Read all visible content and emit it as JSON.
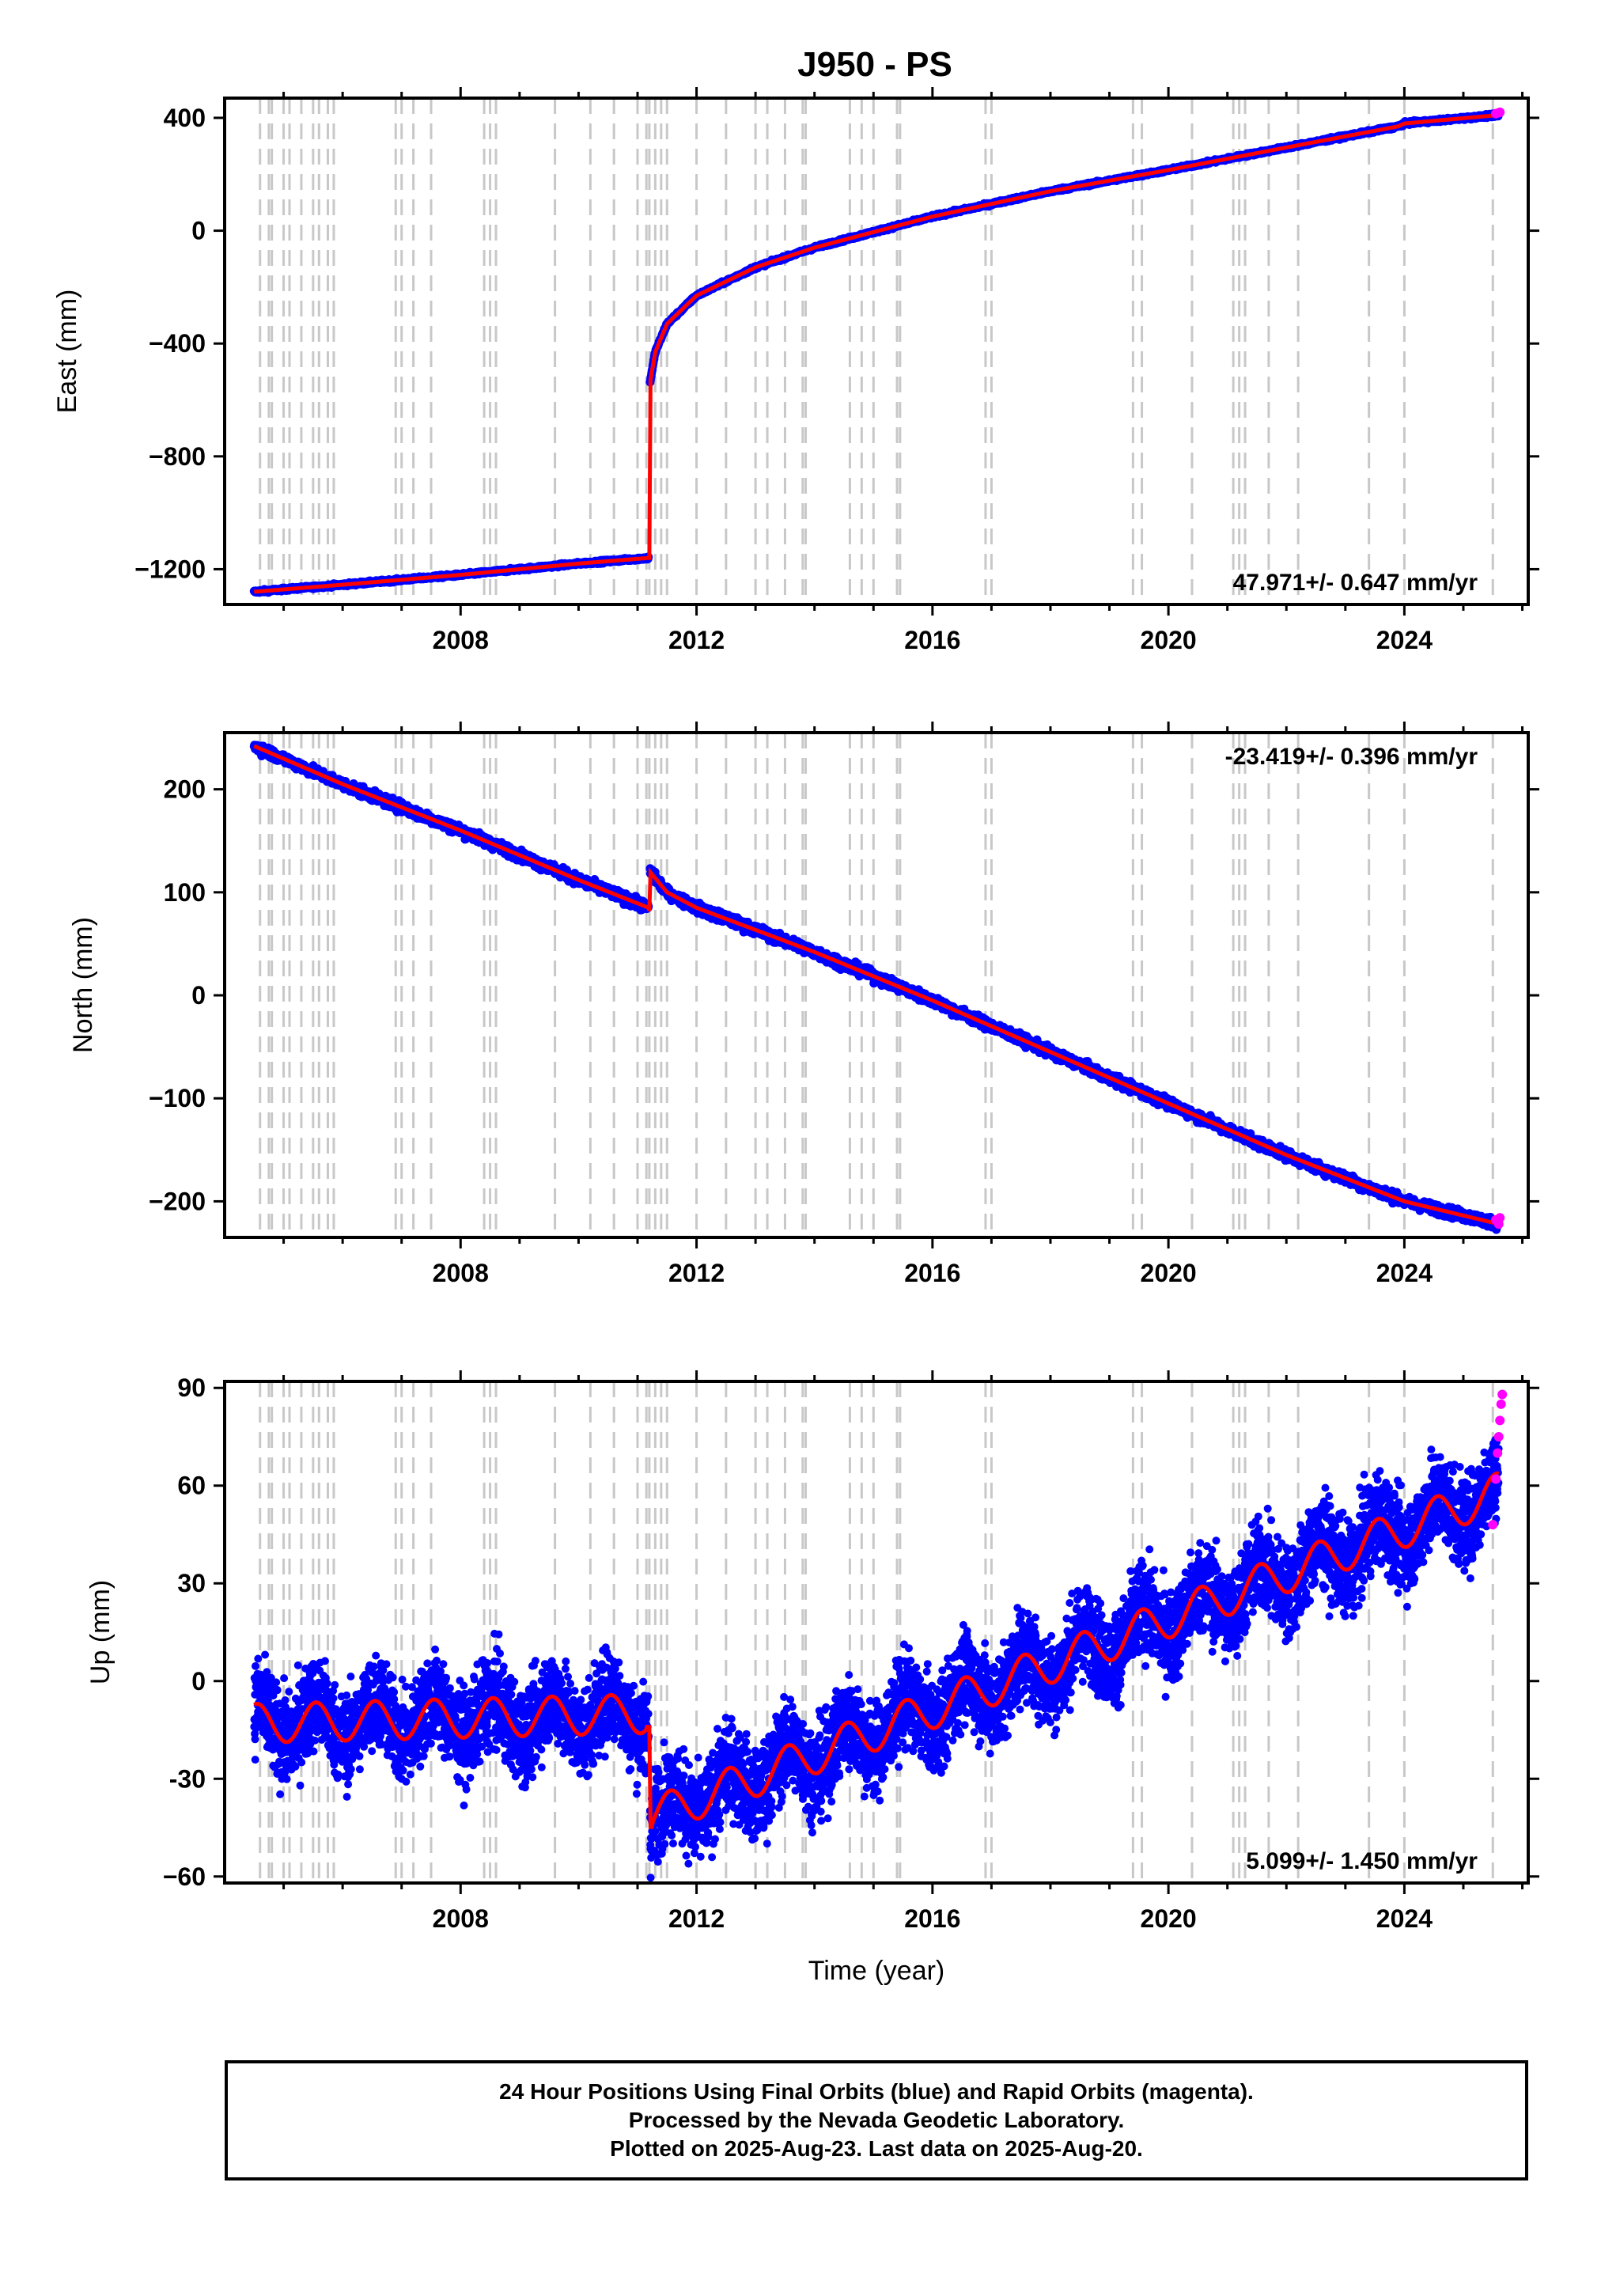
{
  "title": "J950 - PS",
  "footer": {
    "line1": "24 Hour Positions Using Final Orbits (blue) and Rapid Orbits (magenta).",
    "line2": "Processed by the Nevada Geodetic Laboratory.",
    "line3": "Plotted on 2025-Aug-23. Last data on 2025-Aug-20."
  },
  "colors": {
    "final": "#0000ff",
    "rapid": "#ff00ff",
    "model": "#ff0000",
    "events": "#c8c8c8"
  },
  "chart_data": [
    {
      "type": "scatter",
      "ylabel": "East (mm)",
      "rate": "47.971+/- 0.647 mm/yr",
      "rate_position": "bottom-right",
      "xlim": [
        2004.0,
        2026.1
      ],
      "ylim": [
        -1325,
        470
      ],
      "xticks": [
        2008,
        2012,
        2016,
        2020,
        2024
      ],
      "xtick_labels": [
        "2008",
        "2012",
        "2016",
        "2020",
        "2024"
      ],
      "yticks": [
        -1200,
        -800,
        -400,
        0,
        400
      ],
      "ytick_labels": [
        "−1200",
        "−800",
        "−400",
        "0",
        "400"
      ],
      "model": {
        "x": [
          2004.5,
          2006,
          2008,
          2010,
          2011.19,
          2011.2,
          2011.21,
          2011.3,
          2011.5,
          2012,
          2013,
          2014,
          2016,
          2018,
          2020,
          2022,
          2023.9,
          2024.0,
          2025.6
        ],
        "y": [
          -1280,
          -1255,
          -1220,
          -1180,
          -1160,
          -1160,
          -540,
          -430,
          -330,
          -230,
          -130,
          -60,
          50,
          140,
          215,
          295,
          370,
          380,
          410
        ]
      },
      "rapid": {
        "x": [
          2025.55,
          2025.6,
          2025.62
        ],
        "y": [
          415,
          418,
          420
        ]
      }
    },
    {
      "type": "scatter",
      "ylabel": "North (mm)",
      "rate": "-23.419+/- 0.396 mm/yr",
      "rate_position": "top-right",
      "xlim": [
        2004.0,
        2026.1
      ],
      "ylim": [
        -235,
        255
      ],
      "xticks": [
        2008,
        2012,
        2016,
        2020,
        2024
      ],
      "xtick_labels": [
        "2008",
        "2012",
        "2016",
        "2020",
        "2024"
      ],
      "yticks": [
        -200,
        -100,
        0,
        100,
        200
      ],
      "ytick_labels": [
        "−200",
        "−100",
        "0",
        "100",
        "200"
      ],
      "model": {
        "x": [
          2004.5,
          2006,
          2008,
          2010,
          2011.19,
          2011.2,
          2011.21,
          2011.5,
          2012,
          2014,
          2016,
          2018,
          2020,
          2022,
          2024,
          2025.6
        ],
        "y": [
          242,
          205,
          160,
          112,
          85,
          82,
          120,
          100,
          85,
          42,
          -5,
          -55,
          -105,
          -155,
          -200,
          -222
        ]
      },
      "rapid": {
        "x": [
          2025.55,
          2025.6,
          2025.62
        ],
        "y": [
          -218,
          -222,
          -216
        ]
      }
    },
    {
      "type": "scatter",
      "ylabel": "Up (mm)",
      "xlabel": "Time (year)",
      "rate": "5.099+/- 1.450 mm/yr",
      "rate_position": "bottom-right",
      "xlim": [
        2004.0,
        2026.1
      ],
      "ylim": [
        -62,
        92
      ],
      "xticks": [
        2008,
        2012,
        2016,
        2020,
        2024
      ],
      "xtick_labels": [
        "2008",
        "2012",
        "2016",
        "2020",
        "2024"
      ],
      "yticks": [
        -60,
        -30,
        0,
        30,
        60,
        90
      ],
      "ytick_labels": [
        "−60",
        "-30",
        "0",
        "30",
        "60",
        "90"
      ],
      "model": {
        "pre": {
          "x_start": 2004.5,
          "x_end": 2011.19,
          "y_start": -13,
          "y_end": -10,
          "amplitude": 6
        },
        "post": {
          "x_start": 2011.21,
          "x_end": 2025.6,
          "y_start": -42,
          "y_end": 58,
          "amplitude": 6
        }
      },
      "rapid": {
        "x": [
          2025.5,
          2025.55,
          2025.58,
          2025.6,
          2025.62,
          2025.64,
          2025.66
        ],
        "y": [
          48,
          62,
          70,
          75,
          80,
          85,
          88
        ]
      }
    }
  ],
  "event_lines": [
    2004.6,
    2004.75,
    2004.8,
    2005.0,
    2005.1,
    2005.3,
    2005.5,
    2005.6,
    2005.75,
    2005.85,
    2006.9,
    2007.0,
    2007.2,
    2007.5,
    2008.4,
    2008.5,
    2008.6,
    2009.6,
    2010.2,
    2010.6,
    2011.0,
    2011.15,
    2011.2,
    2011.3,
    2011.4,
    2011.5,
    2012.0,
    2012.5,
    2013.0,
    2013.2,
    2013.5,
    2013.8,
    2013.85,
    2014.6,
    2014.8,
    2015.0,
    2015.4,
    2015.45,
    2016.9,
    2017.0,
    2019.4,
    2019.55,
    2020.4,
    2021.1,
    2021.2,
    2021.3,
    2021.7,
    2022.2,
    2023.4,
    2024.0,
    2025.5
  ]
}
